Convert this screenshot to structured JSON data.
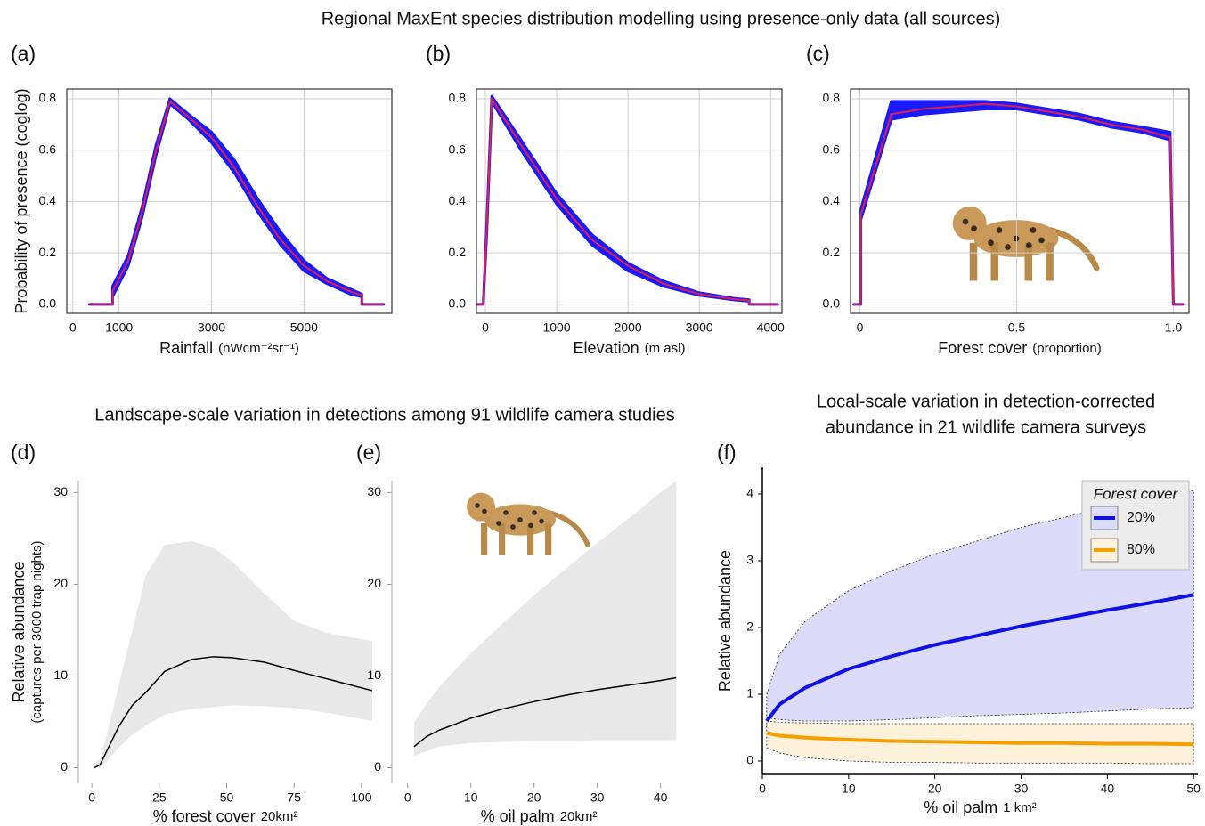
{
  "heading_top": "Regional MaxEnt species distribution modelling using presence-only data (all sources)",
  "heading_bottom_left": "Landscape-scale variation in detections among 91 wildlife camera studies",
  "heading_bottom_right": [
    "Local-scale variation in detection-corrected",
    "abundance in 21 wildlife camera surveys"
  ],
  "chart_data": [
    {
      "type": "line",
      "label": "(a)",
      "ylabel": [
        "Probability of presence (coglog)"
      ],
      "xlabel": "Rainfall",
      "xlabel_unit": "(nWcm⁻²sr⁻¹)",
      "xlim": [
        -130,
        6900
      ],
      "ylim": [
        -0.035,
        0.838
      ],
      "xticks": [
        0,
        1000,
        3000,
        5000
      ],
      "yticks": [
        {
          "value": 0,
          "label": "0.0"
        },
        0.2,
        0.4,
        0.6,
        0.8
      ],
      "grid": true,
      "color": "#e0204a",
      "band_color": "#1a1aff",
      "x": [
        360,
        860,
        860,
        1200,
        1500,
        1800,
        2100,
        2500,
        3000,
        3500,
        4000,
        4500,
        5000,
        5500,
        6000,
        6250,
        6250,
        6720
      ],
      "values": [
        0,
        0,
        0.05,
        0.17,
        0.36,
        0.6,
        0.79,
        0.73,
        0.65,
        0.53,
        0.38,
        0.25,
        0.15,
        0.09,
        0.05,
        0.035,
        0,
        0
      ],
      "lower": [
        0,
        0,
        0.03,
        0.15,
        0.34,
        0.58,
        0.78,
        0.72,
        0.63,
        0.51,
        0.36,
        0.23,
        0.13,
        0.08,
        0.04,
        0.03,
        0,
        0
      ],
      "upper": [
        0,
        0,
        0.07,
        0.19,
        0.38,
        0.62,
        0.8,
        0.74,
        0.67,
        0.56,
        0.41,
        0.28,
        0.17,
        0.1,
        0.06,
        0.04,
        0,
        0
      ]
    },
    {
      "type": "line",
      "label": "(b)",
      "xlabel": "Elevation",
      "xlabel_unit": "(m asl)",
      "xlim": [
        -125,
        4160
      ],
      "ylim": [
        -0.035,
        0.838
      ],
      "xticks": [
        0,
        1000,
        2000,
        3000,
        4000
      ],
      "yticks": [
        {
          "value": 0,
          "label": "0.0"
        },
        0.2,
        0.4,
        0.6,
        0.8
      ],
      "grid": true,
      "color": "#e0204a",
      "band_color": "#1a1aff",
      "x": [
        -120,
        -30,
        20,
        90,
        500,
        1000,
        1500,
        2000,
        2500,
        3000,
        3500,
        3700,
        3700,
        4100
      ],
      "values": [
        0,
        0,
        0.3,
        0.8,
        0.62,
        0.41,
        0.25,
        0.15,
        0.08,
        0.04,
        0.02,
        0.015,
        0,
        0
      ],
      "lower": [
        0,
        0,
        0.28,
        0.79,
        0.6,
        0.39,
        0.23,
        0.13,
        0.07,
        0.035,
        0.017,
        0.012,
        0,
        0
      ],
      "upper": [
        0,
        0,
        0.32,
        0.81,
        0.64,
        0.43,
        0.27,
        0.16,
        0.09,
        0.045,
        0.023,
        0.018,
        0,
        0
      ]
    },
    {
      "type": "line",
      "label": "(c)",
      "xlabel": "Forest cover",
      "xlabel_unit": "(proportion)",
      "xlim": [
        -0.03,
        1.05
      ],
      "ylim": [
        -0.035,
        0.838
      ],
      "xticks": [
        0,
        0.5,
        {
          "value": 1,
          "label": "1.0"
        }
      ],
      "yticks": [
        {
          "value": 0,
          "label": "0.0"
        },
        0.2,
        0.4,
        0.6,
        0.8
      ],
      "grid": true,
      "color": "#e0204a",
      "band_color": "#1a1aff",
      "x": [
        -0.02,
        0.003,
        0.003,
        0.1,
        0.2,
        0.3,
        0.4,
        0.5,
        0.6,
        0.7,
        0.8,
        0.9,
        0.99,
        1.0,
        1.03
      ],
      "values": [
        0,
        0,
        0.35,
        0.74,
        0.76,
        0.77,
        0.78,
        0.77,
        0.75,
        0.73,
        0.7,
        0.68,
        0.65,
        0,
        0
      ],
      "lower": [
        0,
        0,
        0.33,
        0.72,
        0.74,
        0.75,
        0.76,
        0.76,
        0.74,
        0.72,
        0.69,
        0.67,
        0.64,
        0,
        0
      ],
      "upper": [
        0,
        0,
        0.37,
        0.79,
        0.79,
        0.79,
        0.79,
        0.78,
        0.76,
        0.74,
        0.71,
        0.69,
        0.67,
        0,
        0
      ]
    },
    {
      "type": "line",
      "label": "(d)",
      "ylabel": [
        "Relative abundance",
        "(captures per 3000 trap nights)"
      ],
      "xlabel": "% forest cover",
      "xlabel_unit": "20km²",
      "xlim": [
        -5,
        104
      ],
      "ylim": [
        -1.7,
        31.3
      ],
      "xticks": [
        0,
        25,
        50,
        75,
        100
      ],
      "yticks": [
        0,
        10,
        20,
        30
      ],
      "grid": false,
      "color": "#000000",
      "band_color": "#e8e8e8",
      "x": [
        1,
        3,
        5,
        10,
        15,
        20,
        27,
        37,
        45,
        52,
        64,
        75,
        87,
        104
      ],
      "values": [
        0,
        0.3,
        1.5,
        4.5,
        6.8,
        8.2,
        10.5,
        11.8,
        12.1,
        12,
        11.5,
        10.6,
        9.7,
        8.4
      ],
      "lower": [
        0,
        0,
        0.5,
        2.2,
        3.6,
        4.6,
        5.8,
        6.4,
        6.6,
        6.8,
        6.7,
        6.5,
        6,
        5.1
      ],
      "upper": [
        0.5,
        1,
        3,
        9,
        15,
        21,
        24.3,
        24.7,
        24,
        22.5,
        19,
        16,
        14.7,
        13.8
      ]
    },
    {
      "type": "line",
      "label": "(e)",
      "xlabel": "% oil palm",
      "xlabel_unit": "20km²",
      "xlim": [
        -2.5,
        44
      ],
      "ylim": [
        -1.7,
        31.3
      ],
      "xticks": [
        0,
        10,
        20,
        30,
        40
      ],
      "yticks": [
        0,
        10,
        20,
        30
      ],
      "grid": false,
      "color": "#000000",
      "band_color": "#e8e8e8",
      "x": [
        1,
        3,
        5,
        10,
        15,
        20,
        25,
        30,
        35,
        40,
        42.5
      ],
      "values": [
        2.3,
        3.4,
        4.1,
        5.4,
        6.4,
        7.2,
        7.9,
        8.5,
        9,
        9.5,
        9.8
      ],
      "lower": [
        1.3,
        1.8,
        2.3,
        2.7,
        2.8,
        2.9,
        2.9,
        3,
        3,
        3,
        3
      ],
      "upper": [
        4.9,
        7,
        8.8,
        12.5,
        15.7,
        18.8,
        21.7,
        24.5,
        27.2,
        30,
        31.3
      ]
    },
    {
      "type": "line",
      "label": "(f)",
      "ylabel": [
        "Relative abundance"
      ],
      "xlabel": "% oil palm",
      "xlabel_unit": "1 km²",
      "xlim": [
        0,
        50.5
      ],
      "ylim": [
        -0.2,
        4.4
      ],
      "xticks": [
        0,
        10,
        20,
        30,
        40,
        50
      ],
      "yticks": [
        0,
        1,
        2,
        3,
        4
      ],
      "grid": false,
      "legend_title": "Forest cover",
      "legend": "upper right",
      "x": [
        0.5,
        2,
        5,
        10,
        15,
        20,
        25,
        30,
        35,
        40,
        45,
        50
      ],
      "series": [
        {
          "name": "20%",
          "color": "#1010e8",
          "band_color": "#dcdcf8",
          "values": [
            0.6,
            0.85,
            1.1,
            1.38,
            1.57,
            1.74,
            1.88,
            2.02,
            2.14,
            2.26,
            2.37,
            2.49
          ],
          "lower": [
            0.65,
            0.62,
            0.6,
            0.6,
            0.62,
            0.65,
            0.68,
            0.7,
            0.72,
            0.75,
            0.78,
            0.8
          ],
          "upper": [
            1,
            1.6,
            2.1,
            2.55,
            2.85,
            3.1,
            3.3,
            3.5,
            3.65,
            3.8,
            3.95,
            4.05
          ]
        },
        {
          "name": "80%",
          "color": "#f5a000",
          "band_color": "#fdf1dc",
          "values": [
            0.42,
            0.38,
            0.35,
            0.32,
            0.3,
            0.29,
            0.28,
            0.27,
            0.27,
            0.26,
            0.26,
            0.25
          ],
          "lower": [
            0.2,
            0.12,
            0.05,
            0,
            -0.02,
            -0.02,
            -0.03,
            -0.03,
            -0.03,
            -0.03,
            -0.04,
            -0.04
          ],
          "upper": [
            0.6,
            0.58,
            0.57,
            0.56,
            0.56,
            0.56,
            0.56,
            0.56,
            0.56,
            0.56,
            0.56,
            0.56
          ]
        }
      ]
    }
  ]
}
